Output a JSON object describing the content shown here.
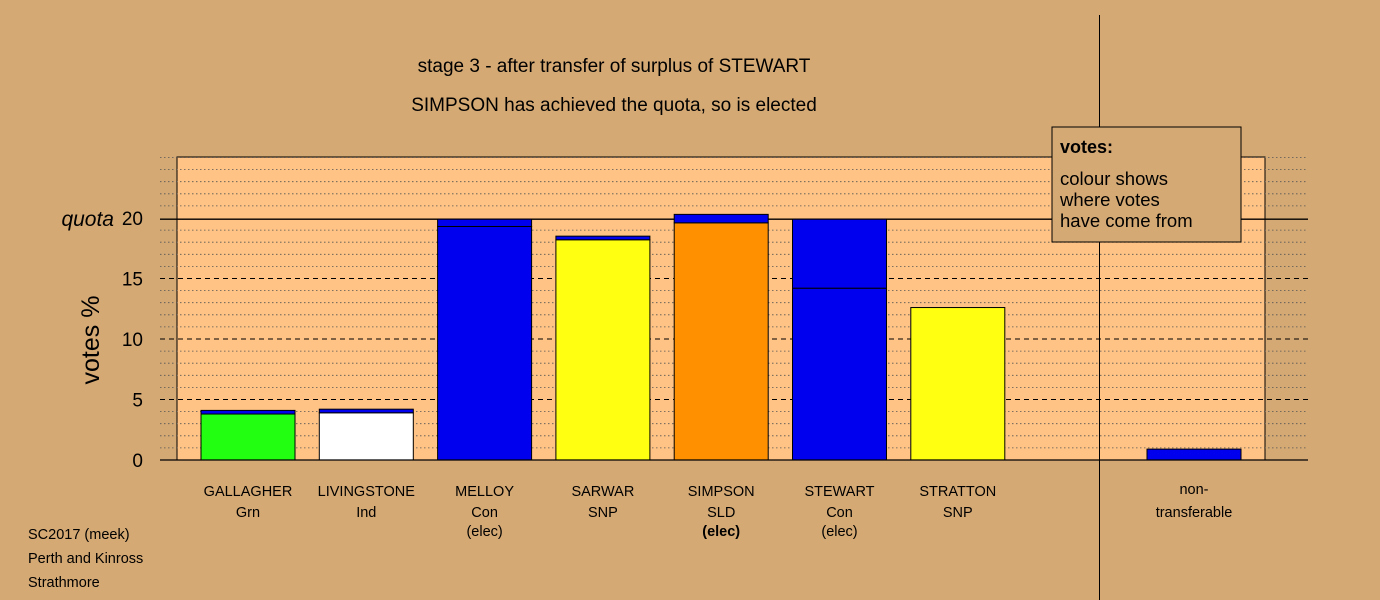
{
  "titles": {
    "line1": "stage 3 - after transfer of surplus of STEWART",
    "line2": "SIMPSON has achieved the quota, so is elected"
  },
  "footer": [
    "SC2017 (meek)",
    "Perth and Kinross",
    "Strathmore"
  ],
  "legend": {
    "title": "votes:",
    "lines": [
      "colour shows",
      "where votes",
      "have come from"
    ]
  },
  "chart_data": {
    "type": "bar",
    "stacked": true,
    "ylabel": "votes %",
    "ylim": [
      0,
      20
    ],
    "yticks": [
      0,
      5,
      10,
      15,
      20
    ],
    "quota": 19.9,
    "quota_label": "quota",
    "grid": true,
    "legend_position": "top-right",
    "colors": {
      "Grn": "#22ff11",
      "Ind": "#ffffff",
      "Con": "#0000ee",
      "SNP": "#ffff11",
      "SLD": "#ff9000"
    },
    "candidates": [
      {
        "name": "GALLAGHER",
        "party": "Grn",
        "status": "",
        "segments": [
          {
            "from": "Grn",
            "value": 3.8
          },
          {
            "from": "Con",
            "value": 0.3
          }
        ]
      },
      {
        "name": "LIVINGSTONE",
        "party": "Ind",
        "status": "",
        "segments": [
          {
            "from": "Ind",
            "value": 3.9
          },
          {
            "from": "Con",
            "value": 0.3
          }
        ]
      },
      {
        "name": "MELLOY",
        "party": "Con",
        "status": "(elec)",
        "segments": [
          {
            "from": "Con",
            "value": 19.3
          },
          {
            "from": "Con",
            "value": 0.6
          }
        ]
      },
      {
        "name": "SARWAR",
        "party": "SNP",
        "status": "",
        "segments": [
          {
            "from": "SNP",
            "value": 18.2
          },
          {
            "from": "Con",
            "value": 0.3
          }
        ]
      },
      {
        "name": "SIMPSON",
        "party": "SLD",
        "status": "(elec)",
        "status_bold": true,
        "segments": [
          {
            "from": "SLD",
            "value": 19.6
          },
          {
            "from": "Con",
            "value": 0.7
          }
        ]
      },
      {
        "name": "STEWART",
        "party": "Con",
        "status": "(elec)",
        "segments": [
          {
            "from": "Con",
            "value": 14.2
          },
          {
            "from": "Con",
            "value": 5.7
          }
        ]
      },
      {
        "name": "STRATTON",
        "party": "SNP",
        "status": "",
        "segments": [
          {
            "from": "SNP",
            "value": 12.6
          }
        ]
      }
    ],
    "nontransferable": {
      "label_line1": "non-",
      "label_line2": "transferable",
      "segments": [
        {
          "from": "Con",
          "value": 0.9
        }
      ]
    }
  }
}
